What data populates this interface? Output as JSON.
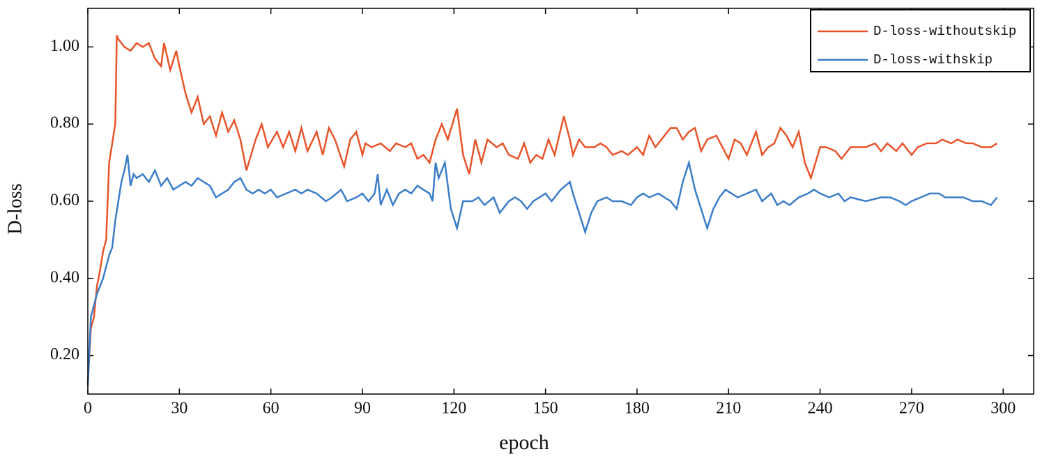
{
  "chart_data": {
    "type": "line",
    "xlabel": "epoch",
    "ylabel": "D-loss",
    "xlim": [
      0,
      310
    ],
    "ylim": [
      0.1,
      1.1
    ],
    "xticks": [
      0,
      30,
      60,
      90,
      120,
      150,
      180,
      210,
      240,
      270,
      300
    ],
    "yticks": [
      {
        "value": 0.2,
        "label": "0.20"
      },
      {
        "value": 0.4,
        "label": "0.40"
      },
      {
        "value": 0.6,
        "label": "0.60"
      },
      {
        "value": 0.8,
        "label": "0.80"
      },
      {
        "value": 1.0,
        "label": "1.00"
      }
    ],
    "legend": "upper right",
    "series": [
      {
        "name": "D-loss-withoutskip",
        "color": "#e8542a",
        "x": [
          0,
          1,
          2,
          3,
          4,
          5,
          6,
          7,
          8,
          9,
          9.5,
          10,
          12,
          14,
          16,
          18,
          20,
          22,
          24,
          25,
          27,
          29,
          30,
          32,
          34,
          36,
          38,
          40,
          42,
          44,
          46,
          48,
          50,
          52,
          55,
          57,
          59,
          62,
          64,
          66,
          68,
          70,
          72,
          75,
          77,
          79,
          81,
          84,
          86,
          88,
          90,
          91,
          93,
          96,
          99,
          101,
          104,
          106,
          108,
          110,
          112,
          114,
          116,
          118,
          121,
          123,
          125,
          127,
          129,
          131,
          134,
          136,
          138,
          141,
          143,
          145,
          147,
          149,
          151,
          153,
          156,
          158,
          159,
          161,
          163,
          166,
          168,
          170,
          172,
          175,
          177,
          180,
          182,
          184,
          186,
          189,
          191,
          193,
          195,
          197,
          199,
          201,
          203,
          206,
          208,
          210,
          212,
          214,
          216,
          219,
          221,
          223,
          225,
          227,
          229,
          231,
          233,
          235,
          237,
          240,
          242,
          245,
          247,
          250,
          255,
          258,
          260,
          262,
          265,
          267,
          270,
          272,
          275,
          278,
          280,
          283,
          285,
          288,
          290,
          293,
          296,
          298
        ],
        "values": [
          0.13,
          0.27,
          0.3,
          0.38,
          0.42,
          0.47,
          0.5,
          0.7,
          0.75,
          0.8,
          1.03,
          1.02,
          1.0,
          0.99,
          1.01,
          1.0,
          1.01,
          0.97,
          0.95,
          1.01,
          0.94,
          0.99,
          0.95,
          0.88,
          0.83,
          0.87,
          0.8,
          0.82,
          0.77,
          0.83,
          0.78,
          0.81,
          0.76,
          0.68,
          0.76,
          0.8,
          0.74,
          0.78,
          0.74,
          0.78,
          0.73,
          0.79,
          0.73,
          0.78,
          0.72,
          0.79,
          0.76,
          0.69,
          0.76,
          0.78,
          0.72,
          0.75,
          0.74,
          0.75,
          0.73,
          0.75,
          0.74,
          0.75,
          0.71,
          0.72,
          0.7,
          0.76,
          0.8,
          0.76,
          0.84,
          0.72,
          0.67,
          0.76,
          0.7,
          0.76,
          0.74,
          0.75,
          0.72,
          0.71,
          0.75,
          0.7,
          0.72,
          0.71,
          0.76,
          0.72,
          0.82,
          0.76,
          0.72,
          0.76,
          0.74,
          0.74,
          0.75,
          0.74,
          0.72,
          0.73,
          0.72,
          0.74,
          0.72,
          0.77,
          0.74,
          0.77,
          0.79,
          0.79,
          0.76,
          0.78,
          0.79,
          0.73,
          0.76,
          0.77,
          0.74,
          0.71,
          0.76,
          0.75,
          0.72,
          0.78,
          0.72,
          0.74,
          0.75,
          0.79,
          0.77,
          0.74,
          0.78,
          0.7,
          0.66,
          0.74,
          0.74,
          0.73,
          0.71,
          0.74,
          0.74,
          0.75,
          0.73,
          0.75,
          0.73,
          0.75,
          0.72,
          0.74,
          0.75,
          0.75,
          0.76,
          0.75,
          0.76,
          0.75,
          0.75,
          0.74,
          0.74,
          0.75
        ]
      },
      {
        "name": "D-loss-withskip",
        "color": "#3a7dc9",
        "x": [
          0,
          1,
          2,
          3,
          5,
          7,
          8,
          9,
          10,
          11,
          12,
          13,
          14,
          15,
          16,
          18,
          20,
          22,
          24,
          26,
          28,
          30,
          32,
          34,
          36,
          38,
          40,
          42,
          44,
          46,
          48,
          50,
          52,
          54,
          56,
          58,
          60,
          62,
          65,
          68,
          70,
          72,
          75,
          78,
          80,
          83,
          85,
          88,
          90,
          92,
          94,
          95,
          96,
          98,
          100,
          102,
          104,
          106,
          108,
          110,
          112,
          113,
          114,
          115,
          117,
          119,
          121,
          123,
          126,
          128,
          130,
          133,
          135,
          138,
          140,
          142,
          144,
          146,
          148,
          150,
          152,
          155,
          158,
          159,
          161,
          163,
          165,
          167,
          170,
          172,
          175,
          178,
          180,
          182,
          184,
          187,
          189,
          191,
          193,
          195,
          197,
          199,
          201,
          203,
          205,
          207,
          209,
          211,
          213,
          216,
          219,
          221,
          224,
          226,
          228,
          230,
          233,
          236,
          238,
          240,
          243,
          246,
          248,
          250,
          255,
          260,
          263,
          266,
          268,
          270,
          273,
          276,
          279,
          281,
          284,
          287,
          290,
          293,
          296,
          298
        ],
        "values": [
          0.12,
          0.3,
          0.33,
          0.36,
          0.4,
          0.46,
          0.48,
          0.55,
          0.6,
          0.65,
          0.68,
          0.72,
          0.64,
          0.67,
          0.66,
          0.67,
          0.65,
          0.68,
          0.64,
          0.66,
          0.63,
          0.64,
          0.65,
          0.64,
          0.66,
          0.65,
          0.64,
          0.61,
          0.62,
          0.63,
          0.65,
          0.66,
          0.63,
          0.62,
          0.63,
          0.62,
          0.63,
          0.61,
          0.62,
          0.63,
          0.62,
          0.63,
          0.62,
          0.6,
          0.61,
          0.63,
          0.6,
          0.61,
          0.62,
          0.6,
          0.62,
          0.67,
          0.59,
          0.63,
          0.59,
          0.62,
          0.63,
          0.62,
          0.64,
          0.63,
          0.62,
          0.6,
          0.7,
          0.66,
          0.7,
          0.58,
          0.53,
          0.6,
          0.6,
          0.61,
          0.59,
          0.61,
          0.57,
          0.6,
          0.61,
          0.6,
          0.58,
          0.6,
          0.61,
          0.62,
          0.6,
          0.63,
          0.65,
          0.62,
          0.57,
          0.52,
          0.57,
          0.6,
          0.61,
          0.6,
          0.6,
          0.59,
          0.61,
          0.62,
          0.61,
          0.62,
          0.61,
          0.6,
          0.58,
          0.65,
          0.7,
          0.63,
          0.58,
          0.53,
          0.58,
          0.61,
          0.63,
          0.62,
          0.61,
          0.62,
          0.63,
          0.6,
          0.62,
          0.59,
          0.6,
          0.59,
          0.61,
          0.62,
          0.63,
          0.62,
          0.61,
          0.62,
          0.6,
          0.61,
          0.6,
          0.61,
          0.61,
          0.6,
          0.59,
          0.6,
          0.61,
          0.62,
          0.62,
          0.61,
          0.61,
          0.61,
          0.6,
          0.6,
          0.59,
          0.61
        ]
      }
    ]
  }
}
